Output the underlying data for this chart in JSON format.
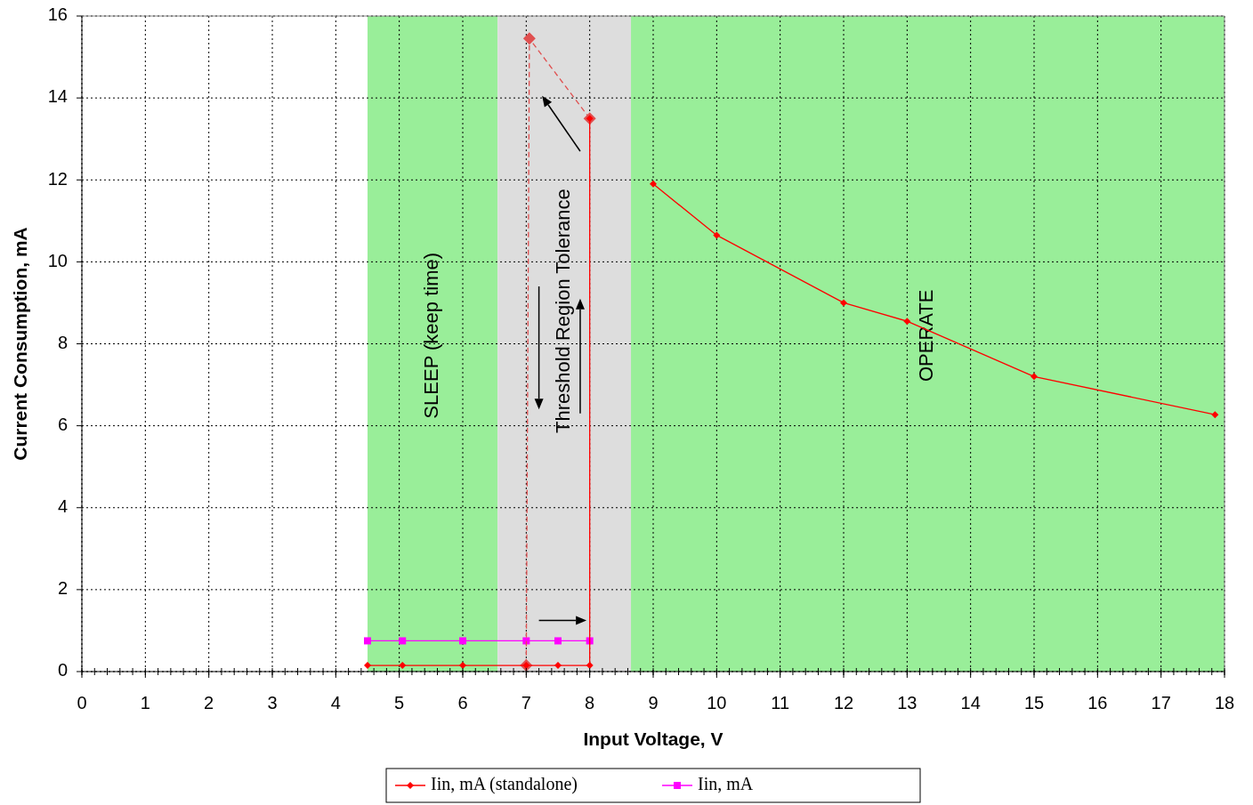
{
  "chart_data": {
    "type": "line",
    "xlabel": "Input Voltage, V",
    "ylabel": "Current Consumption, mA",
    "xlim": [
      0,
      18
    ],
    "xticks": [
      0,
      1,
      2,
      3,
      4,
      5,
      6,
      7,
      8,
      9,
      10,
      11,
      12,
      13,
      14,
      15,
      16,
      17,
      18
    ],
    "ylim": [
      0,
      16
    ],
    "yticks": [
      0,
      2,
      4,
      6,
      8,
      10,
      12,
      14,
      16
    ],
    "grid": true,
    "legend": "bottom",
    "series": [
      {
        "name": "Iin, mA (standalone)",
        "color": "#ff0000",
        "marker": "diamond",
        "line_style": "solid",
        "x": [
          4.5,
          5.05,
          6,
          7,
          7.5,
          8,
          8,
          8.5,
          9,
          10,
          12,
          13,
          15,
          17.85
        ],
        "values": [
          0.15,
          0.15,
          0.15,
          0.15,
          0.15,
          0.15,
          13.5,
          null,
          11.9,
          10.65,
          9.0,
          8.55,
          7.2,
          6.27
        ]
      },
      {
        "color": "#e05050",
        "marker": "diamond",
        "line_style": "dashed",
        "x": [
          8,
          7.05,
          7
        ],
        "values": [
          13.5,
          15.45,
          0.15
        ]
      },
      {
        "name": "Iin, mA",
        "color": "#ff00ff",
        "marker": "square",
        "line_style": "solid",
        "x": [
          4.5,
          5.05,
          6,
          7,
          7.5,
          8
        ],
        "values": [
          0.75,
          0.75,
          0.75,
          0.75,
          0.75,
          0.75
        ]
      }
    ],
    "bands": [
      {
        "axis": "x",
        "from": 4.5,
        "to": 6.55,
        "label": "SLEEP (keep time)",
        "color": "#99ee99"
      },
      {
        "axis": "x",
        "from": 6.55,
        "to": 8.65,
        "label": "Threshold Region Tolerance",
        "color": "#dddddd"
      },
      {
        "axis": "x",
        "from": 8.65,
        "to": 18,
        "label": "OPERATE",
        "color": "#99ee99"
      }
    ]
  }
}
